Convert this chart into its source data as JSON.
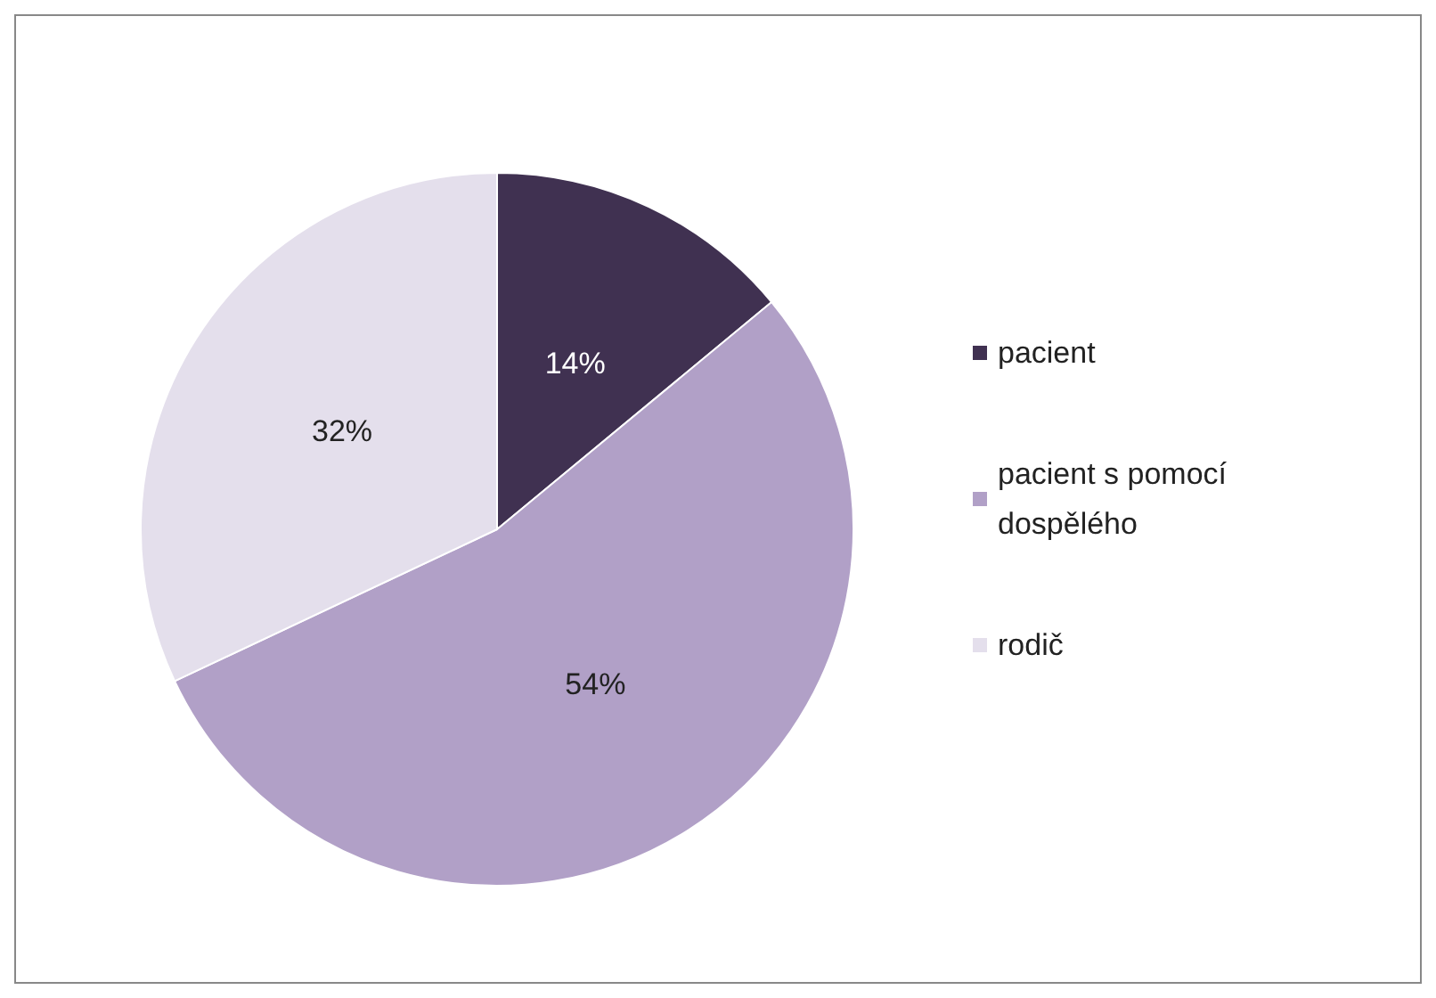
{
  "chart_data": {
    "type": "pie",
    "categories": [
      "pacient",
      "pacient s pomocí dospělého",
      "rodič"
    ],
    "values": [
      14,
      54,
      32
    ],
    "colors": [
      "#403151",
      "#b1a0c7",
      "#e4dfec"
    ],
    "value_labels": [
      "14%",
      "54%",
      "32%"
    ],
    "legend": "right"
  }
}
